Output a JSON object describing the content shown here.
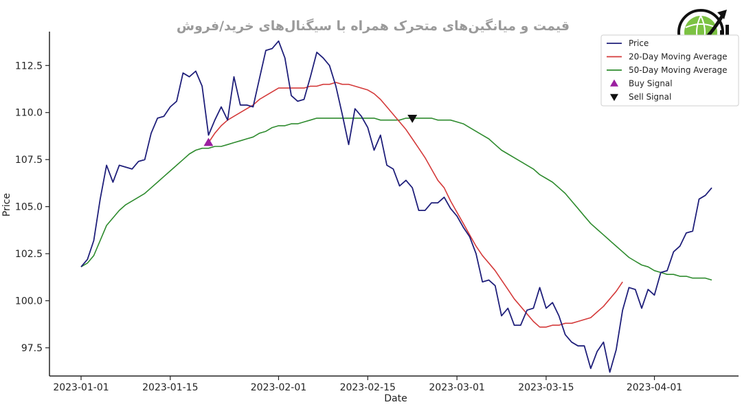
{
  "chart_data": {
    "type": "line",
    "title": "قیمت و میانگین‌های متحرک همراه با سیگنال‌های خرید/فروش",
    "xlabel": "Date",
    "ylabel": "Price",
    "xlim": [
      "2023-01-01",
      "2023-04-10"
    ],
    "ylim": [
      96.0,
      114.3
    ],
    "x_ticks": [
      "2023-01-01",
      "2023-01-15",
      "2023-02-01",
      "2023-02-15",
      "2023-03-01",
      "2023-03-15",
      "2023-04-01"
    ],
    "y_ticks": [
      97.5,
      100.0,
      102.5,
      105.0,
      107.5,
      110.0,
      112.5
    ],
    "grid": false,
    "legend_position": "top-right",
    "start_date": "2023-01-01",
    "series": [
      {
        "name": "Price",
        "color": "#1f1f7a",
        "values": [
          101.8,
          102.2,
          103.2,
          105.4,
          107.2,
          106.3,
          107.2,
          107.1,
          107.0,
          107.4,
          107.5,
          108.9,
          109.7,
          109.8,
          110.3,
          110.6,
          112.1,
          111.9,
          112.2,
          111.4,
          108.8,
          109.6,
          110.3,
          109.6,
          111.9,
          110.4,
          110.4,
          110.3,
          111.8,
          113.3,
          113.4,
          113.8,
          112.9,
          110.9,
          110.6,
          110.7,
          111.9,
          113.2,
          112.9,
          112.5,
          111.4,
          109.9,
          108.3,
          110.2,
          109.8,
          109.2,
          108.0,
          108.8,
          107.2,
          107.0,
          106.1,
          106.4,
          106.0,
          104.8,
          104.8,
          105.2,
          105.2,
          105.5,
          104.9,
          104.5,
          103.9,
          103.4,
          102.5,
          101.0,
          101.1,
          100.8,
          99.2,
          99.6,
          98.7,
          98.7,
          99.5,
          99.6,
          100.7,
          99.6,
          99.9,
          99.2,
          98.2,
          97.8,
          97.6,
          97.6,
          96.4,
          97.3,
          97.8,
          96.2,
          97.4,
          99.5,
          100.7,
          100.6,
          99.6,
          100.6,
          100.3,
          101.5,
          101.6,
          102.6,
          102.9,
          103.6,
          103.7,
          105.4,
          105.6,
          106.0
        ]
      },
      {
        "name": "20-Day Moving Average",
        "color": "#d43a3a",
        "x_start": 20,
        "values": [
          108.4,
          108.9,
          109.3,
          109.6,
          109.8,
          110.0,
          110.2,
          110.4,
          110.7,
          110.9,
          111.1,
          111.3,
          111.3,
          111.3,
          111.3,
          111.3,
          111.4,
          111.4,
          111.5,
          111.5,
          111.6,
          111.5,
          111.5,
          111.4,
          111.3,
          111.2,
          111.0,
          110.7,
          110.3,
          109.9,
          109.5,
          109.1,
          108.6,
          108.1,
          107.6,
          107.0,
          106.4,
          106.0,
          105.3,
          104.7,
          104.1,
          103.5,
          102.9,
          102.4,
          102.0,
          101.6,
          101.1,
          100.6,
          100.1,
          99.7,
          99.3,
          98.9,
          98.6,
          98.6,
          98.7,
          98.7,
          98.8,
          98.8,
          98.9,
          99.0,
          99.1,
          99.4,
          99.7,
          100.1,
          100.5,
          101.0
        ]
      },
      {
        "name": "50-Day Moving Average",
        "color": "#2e8b2e",
        "values": [
          101.8,
          102.0,
          102.4,
          103.2,
          104.0,
          104.4,
          104.8,
          105.1,
          105.3,
          105.5,
          105.7,
          106.0,
          106.3,
          106.6,
          106.9,
          107.2,
          107.5,
          107.8,
          108.0,
          108.1,
          108.1,
          108.2,
          108.2,
          108.3,
          108.4,
          108.5,
          108.6,
          108.7,
          108.9,
          109.0,
          109.2,
          109.3,
          109.3,
          109.4,
          109.4,
          109.5,
          109.6,
          109.7,
          109.7,
          109.7,
          109.7,
          109.7,
          109.7,
          109.7,
          109.7,
          109.7,
          109.7,
          109.6,
          109.6,
          109.6,
          109.6,
          109.7,
          109.7,
          109.7,
          109.7,
          109.7,
          109.6,
          109.6,
          109.6,
          109.5,
          109.4,
          109.2,
          109.0,
          108.8,
          108.6,
          108.3,
          108.0,
          107.8,
          107.6,
          107.4,
          107.2,
          107.0,
          106.7,
          106.5,
          106.3,
          106.0,
          105.7,
          105.3,
          104.9,
          104.5,
          104.1,
          103.8,
          103.5,
          103.2,
          102.9,
          102.6,
          102.3,
          102.1,
          101.9,
          101.8,
          101.6,
          101.5,
          101.4,
          101.4,
          101.3,
          101.3,
          101.2,
          101.2,
          101.2,
          101.1
        ]
      }
    ],
    "signals": [
      {
        "name": "Buy Signal",
        "color": "#9b1fa0",
        "marker": "triangle-up",
        "x": 20,
        "y": 108.4
      },
      {
        "name": "Sell Signal",
        "color": "#111111",
        "marker": "triangle-down",
        "x": 52,
        "y": 109.7
      }
    ]
  },
  "logo": {
    "icon": "globe-chart-arrow-icon"
  }
}
